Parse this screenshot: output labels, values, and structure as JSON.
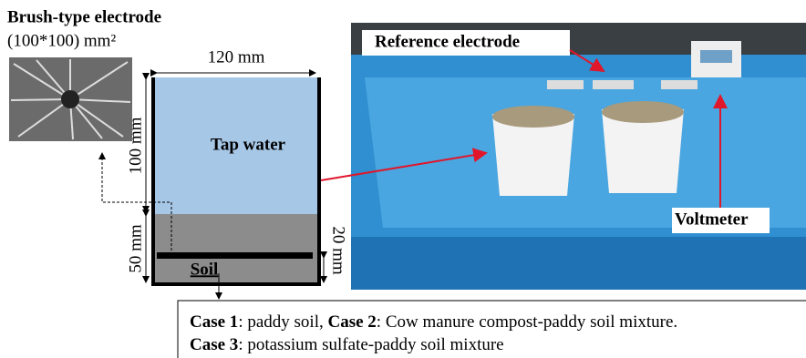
{
  "brush_label": {
    "title": "Brush-type   electrode",
    "size": "(100*100) mm²"
  },
  "container": {
    "width": "120 mm",
    "water_height": "100 mm",
    "water": "Tap water",
    "soil_height": "50 mm",
    "electrode_height": "20 mm",
    "soil": "Soil"
  },
  "photo": {
    "reference": "Reference electrode",
    "voltmeter": "Voltmeter"
  },
  "cases": [
    {
      "name": "Case 1",
      "text": ": paddy soil, "
    },
    {
      "name": "Case 2",
      "text": ": Cow manure compost-paddy soil mixture."
    },
    {
      "name": "Case 3",
      "text": ": potassium sulfate-paddy soil mixture"
    }
  ]
}
